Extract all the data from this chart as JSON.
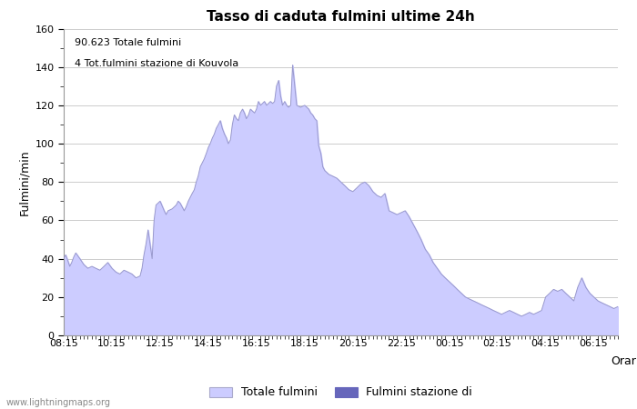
{
  "title": "Tasso di caduta fulmini ultime 24h",
  "xlabel": "Orario",
  "ylabel": "Fulmini/min",
  "annotation_line1": "90.623 Totale fulmini",
  "annotation_line2": "4 Tot.fulmini stazione di Kouvola",
  "ylim": [
    0,
    160
  ],
  "yticks": [
    0,
    20,
    40,
    60,
    80,
    100,
    120,
    140,
    160
  ],
  "xtick_labels": [
    "08:15",
    "10:15",
    "12:15",
    "14:15",
    "16:15",
    "18:15",
    "20:15",
    "22:15",
    "00:15",
    "02:15",
    "04:15",
    "06:15"
  ],
  "legend_labels": [
    "Totale fulmini",
    "Fulmini stazione di"
  ],
  "fill_color": "#ccccff",
  "fill_color2": "#6666bb",
  "line_color": "#9999cc",
  "background_color": "#ffffff",
  "watermark": "www.lightningmaps.org",
  "time_hours": [
    0.0,
    0.08,
    0.17,
    0.25,
    0.33,
    0.42,
    0.5,
    0.67,
    0.83,
    1.0,
    1.17,
    1.33,
    1.5,
    1.67,
    1.83,
    2.0,
    2.17,
    2.33,
    2.5,
    2.67,
    2.83,
    3.0,
    3.17,
    3.25,
    3.33,
    3.42,
    3.5,
    3.58,
    3.67,
    3.75,
    3.83,
    4.0,
    4.17,
    4.25,
    4.33,
    4.5,
    4.67,
    4.75,
    4.83,
    5.0,
    5.08,
    5.17,
    5.25,
    5.33,
    5.42,
    5.5,
    5.58,
    5.67,
    5.75,
    5.83,
    5.92,
    6.0,
    6.08,
    6.17,
    6.25,
    6.33,
    6.42,
    6.5,
    6.58,
    6.67,
    6.75,
    6.83,
    6.92,
    7.0,
    7.08,
    7.17,
    7.25,
    7.33,
    7.42,
    7.5,
    7.58,
    7.67,
    7.75,
    7.83,
    7.92,
    8.0,
    8.08,
    8.17,
    8.25,
    8.33,
    8.42,
    8.5,
    8.58,
    8.67,
    8.75,
    8.83,
    8.92,
    9.0,
    9.08,
    9.17,
    9.25,
    9.33,
    9.42,
    9.5,
    9.67,
    9.83,
    10.0,
    10.17,
    10.25,
    10.33,
    10.42,
    10.5,
    10.58,
    10.67,
    10.75,
    10.83,
    11.0,
    11.17,
    11.33,
    11.5,
    11.67,
    11.83,
    12.0,
    12.17,
    12.33,
    12.5,
    12.67,
    12.83,
    13.0,
    13.17,
    13.33,
    13.5,
    13.67,
    13.83,
    14.0,
    14.17,
    14.33,
    14.5,
    14.67,
    14.83,
    15.0,
    15.17,
    15.33,
    15.5,
    15.67,
    15.83,
    16.0,
    16.17,
    16.33,
    16.5,
    16.67,
    16.83,
    17.0,
    17.17,
    17.33,
    17.5,
    17.67,
    17.83,
    18.0,
    18.17,
    18.33,
    18.5,
    18.67,
    18.83,
    19.0,
    19.17,
    19.33,
    19.5,
    19.67,
    19.83,
    20.0,
    20.17,
    20.33,
    20.5,
    20.67,
    20.83,
    21.0,
    21.17,
    21.33,
    21.5,
    21.67,
    21.83,
    22.0,
    22.17,
    22.33,
    22.5,
    22.67,
    22.83,
    23.0
  ],
  "y_values": [
    40,
    42,
    39,
    36,
    38,
    41,
    43,
    40,
    37,
    35,
    36,
    35,
    34,
    36,
    38,
    35,
    33,
    32,
    34,
    33,
    32,
    30,
    31,
    35,
    42,
    48,
    55,
    48,
    40,
    60,
    68,
    70,
    65,
    63,
    65,
    66,
    68,
    70,
    69,
    65,
    67,
    70,
    72,
    74,
    76,
    80,
    83,
    88,
    90,
    92,
    95,
    98,
    100,
    103,
    105,
    108,
    110,
    112,
    108,
    105,
    103,
    100,
    102,
    110,
    115,
    113,
    112,
    116,
    118,
    116,
    113,
    115,
    118,
    117,
    116,
    118,
    122,
    120,
    121,
    122,
    120,
    121,
    122,
    121,
    122,
    130,
    133,
    125,
    120,
    122,
    120,
    119,
    120,
    141,
    120,
    119,
    120,
    118,
    116,
    115,
    113,
    112,
    99,
    95,
    88,
    86,
    84,
    83,
    82,
    80,
    78,
    76,
    75,
    77,
    79,
    80,
    78,
    75,
    73,
    72,
    74,
    65,
    64,
    63,
    64,
    65,
    62,
    58,
    54,
    50,
    45,
    42,
    38,
    35,
    32,
    30,
    28,
    26,
    24,
    22,
    20,
    19,
    18,
    17,
    16,
    15,
    14,
    13,
    12,
    11,
    12,
    13,
    12,
    11,
    10,
    11,
    12,
    11,
    12,
    13,
    20,
    22,
    24,
    23,
    24,
    22,
    20,
    18,
    25,
    30,
    25,
    22,
    20,
    18,
    17,
    16,
    15,
    14,
    15
  ],
  "xlim_hours": 23.0
}
